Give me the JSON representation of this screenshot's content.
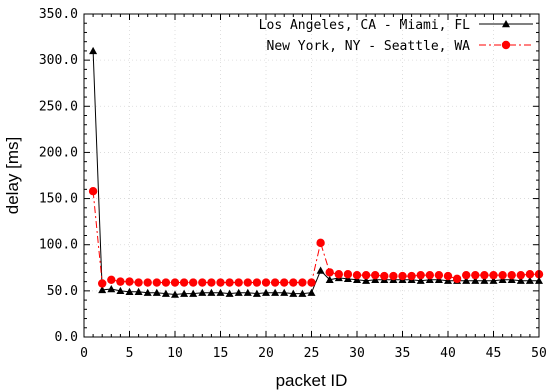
{
  "chart_data": {
    "type": "line",
    "xlabel": "packet ID",
    "ylabel": "delay [ms]",
    "xlim": [
      0,
      50
    ],
    "ylim": [
      0,
      350
    ],
    "xticks": [
      0,
      5,
      10,
      15,
      20,
      25,
      30,
      35,
      40,
      45,
      50
    ],
    "xtick_labels": [
      "0",
      "5",
      "10",
      "15",
      "20",
      "25",
      "30",
      "35",
      "40",
      "45",
      "50"
    ],
    "yticks": [
      0,
      50,
      100,
      150,
      200,
      250,
      300,
      350
    ],
    "ytick_labels": [
      "0.0",
      "50.0",
      "100.0",
      "150.0",
      "200.0",
      "250.0",
      "300.0",
      "350.0"
    ],
    "grid": true,
    "legend_position": "top-right",
    "x": [
      1,
      2,
      3,
      4,
      5,
      6,
      7,
      8,
      9,
      10,
      11,
      12,
      13,
      14,
      15,
      16,
      17,
      18,
      19,
      20,
      21,
      22,
      23,
      24,
      25,
      26,
      27,
      28,
      29,
      30,
      31,
      32,
      33,
      34,
      35,
      36,
      37,
      38,
      39,
      40,
      41,
      42,
      43,
      44,
      45,
      46,
      47,
      48,
      49,
      50
    ],
    "series": [
      {
        "name": "Los Angeles, CA - Miami, FL",
        "color": "#000000",
        "marker": "triangle",
        "line_style": "solid",
        "values": [
          310,
          51,
          52,
          50,
          49,
          49,
          48,
          48,
          47,
          46,
          47,
          47,
          48,
          48,
          48,
          47,
          48,
          48,
          47,
          48,
          48,
          48,
          47,
          47,
          48,
          72,
          62,
          64,
          63,
          62,
          61,
          62,
          62,
          62,
          62,
          62,
          61,
          62,
          62,
          61,
          61,
          61,
          61,
          61,
          61,
          62,
          62,
          61,
          61,
          61
        ]
      },
      {
        "name": "New York, NY - Seattle, WA",
        "color": "#ff0000",
        "marker": "circle",
        "line_style": "dash-dot",
        "values": [
          158,
          58,
          62,
          60,
          60,
          59,
          59,
          59,
          59,
          59,
          59,
          59,
          59,
          59,
          59,
          59,
          59,
          59,
          59,
          59,
          59,
          59,
          59,
          59,
          59,
          102,
          70,
          68,
          68,
          67,
          67,
          67,
          66,
          66,
          66,
          66,
          67,
          67,
          67,
          66,
          63,
          67,
          67,
          67,
          67,
          67,
          67,
          67,
          68,
          68
        ]
      }
    ]
  }
}
